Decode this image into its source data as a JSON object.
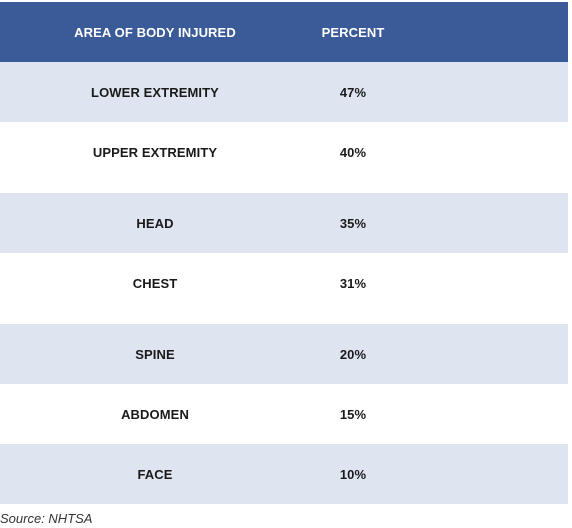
{
  "table": {
    "headers": [
      "AREA OF BODY INJURED",
      "PERCENT"
    ],
    "rows": [
      {
        "area": "LOWER EXTREMITY",
        "percent": "47%"
      },
      {
        "area": "UPPER EXTREMITY",
        "percent": "40%"
      },
      {
        "area": "HEAD",
        "percent": "35%"
      },
      {
        "area": "CHEST",
        "percent": "31%"
      },
      {
        "area": "SPINE",
        "percent": "20%"
      },
      {
        "area": "ABDOMEN",
        "percent": "15%"
      },
      {
        "area": "FACE",
        "percent": "10%"
      }
    ]
  },
  "source": "Source: NHTSA",
  "colors": {
    "header_bg": "#3b5a98",
    "shaded_row_bg": "#dfe5f0",
    "plain_row_bg": "#ffffff"
  }
}
